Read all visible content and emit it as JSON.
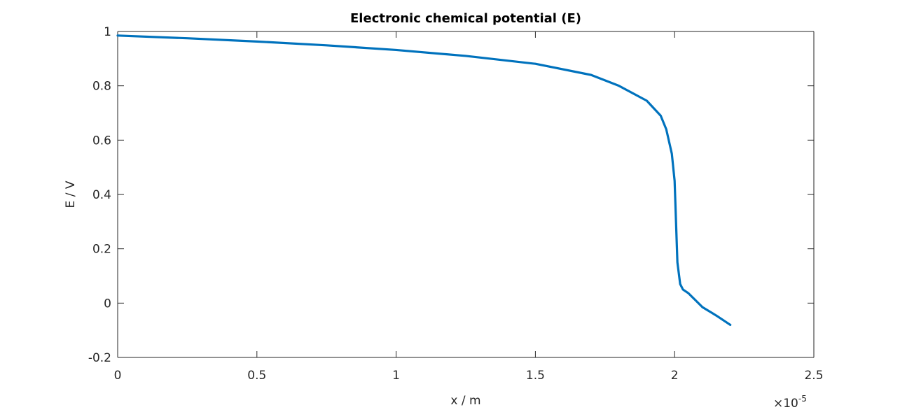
{
  "chart_data": {
    "type": "line",
    "title": "Electronic chemical potential (E)",
    "xlabel": "x / m",
    "ylabel": "E / V",
    "x_multiplier": {
      "base": "×10",
      "exponent": "-5"
    },
    "x": [
      0,
      0.25,
      0.5,
      0.75,
      1.0,
      1.25,
      1.5,
      1.7,
      1.8,
      1.9,
      1.95,
      1.97,
      1.99,
      2.0,
      2.005,
      2.01,
      2.02,
      2.03,
      2.05,
      2.1,
      2.15,
      2.2
    ],
    "series": [
      {
        "name": "E",
        "color": "#0072bd",
        "values": [
          0.985,
          0.975,
          0.963,
          0.949,
          0.932,
          0.91,
          0.881,
          0.84,
          0.8,
          0.745,
          0.69,
          0.64,
          0.55,
          0.45,
          0.3,
          0.15,
          0.07,
          0.05,
          0.036,
          -0.015,
          -0.046,
          -0.08
        ]
      }
    ],
    "xlim": [
      0,
      2.5
    ],
    "xticks": [
      0,
      0.5,
      1,
      1.5,
      2,
      2.5
    ],
    "ylim": [
      -0.2,
      1
    ],
    "yticks": [
      -0.2,
      0,
      0.2,
      0.4,
      0.6,
      0.8,
      1
    ],
    "grid": false
  }
}
